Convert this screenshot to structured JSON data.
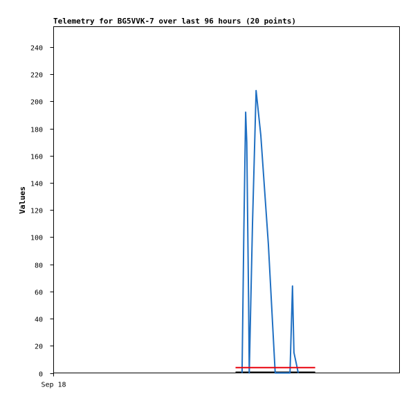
{
  "chart_data": {
    "type": "line",
    "title": "Telemetry for BG5VVK-7 over last 96 hours (20 points)",
    "xlabel": "",
    "ylabel": "Values",
    "ylim": [
      0,
      255
    ],
    "yticks": [
      0,
      20,
      40,
      60,
      80,
      100,
      120,
      140,
      160,
      180,
      200,
      220,
      240
    ],
    "xticks": [
      {
        "label": "Sep 18",
        "hour": 0
      }
    ],
    "xlim_hours": [
      0,
      96
    ],
    "grid": false,
    "legend": "none",
    "series": [
      {
        "color": "#1f6fc2",
        "points": [
          {
            "x": 52.3,
            "y": 0
          },
          {
            "x": 52.8,
            "y": 105
          },
          {
            "x": 53.3,
            "y": 192
          },
          {
            "x": 53.6,
            "y": 170
          },
          {
            "x": 54.1,
            "y": 55
          },
          {
            "x": 54.3,
            "y": 0
          },
          {
            "x": 55.2,
            "y": 110
          },
          {
            "x": 56.2,
            "y": 208
          },
          {
            "x": 57.5,
            "y": 175
          },
          {
            "x": 59.6,
            "y": 95
          },
          {
            "x": 61.5,
            "y": 0
          },
          {
            "x": 65.6,
            "y": 0
          },
          {
            "x": 66.3,
            "y": 64
          },
          {
            "x": 66.7,
            "y": 15
          },
          {
            "x": 67.5,
            "y": 5
          },
          {
            "x": 67.9,
            "y": 0
          }
        ]
      },
      {
        "color": "#e8000b",
        "points": [
          {
            "x": 50.5,
            "y": 4
          },
          {
            "x": 72.6,
            "y": 4
          }
        ]
      },
      {
        "color": "#000000",
        "points": [
          {
            "x": 50.5,
            "y": 0.5
          },
          {
            "x": 72.6,
            "y": 0.5
          }
        ]
      }
    ]
  }
}
